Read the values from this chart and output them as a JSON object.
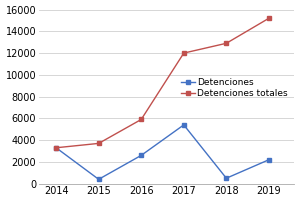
{
  "years": [
    2014,
    2015,
    2016,
    2017,
    2018,
    2019
  ],
  "detenciones": [
    3300,
    400,
    2600,
    5400,
    500,
    2200
  ],
  "detenciones_totales": [
    3300,
    3700,
    5900,
    12000,
    12900,
    15200
  ],
  "line_color_detenciones": "#4472C4",
  "line_color_totales": "#C0504D",
  "marker_detenciones": "s",
  "marker_totales": "s",
  "legend_detenciones": "Detenciones",
  "legend_totales": "Detenciones totales",
  "ylim": [
    0,
    16000
  ],
  "yticks": [
    0,
    2000,
    4000,
    6000,
    8000,
    10000,
    12000,
    14000,
    16000
  ],
  "background_color": "#ffffff",
  "plot_bg_color": "#ffffff",
  "grid_color": "#d0d0d0",
  "fontsize": 7,
  "marker_size": 3.5,
  "linewidth": 1.0
}
